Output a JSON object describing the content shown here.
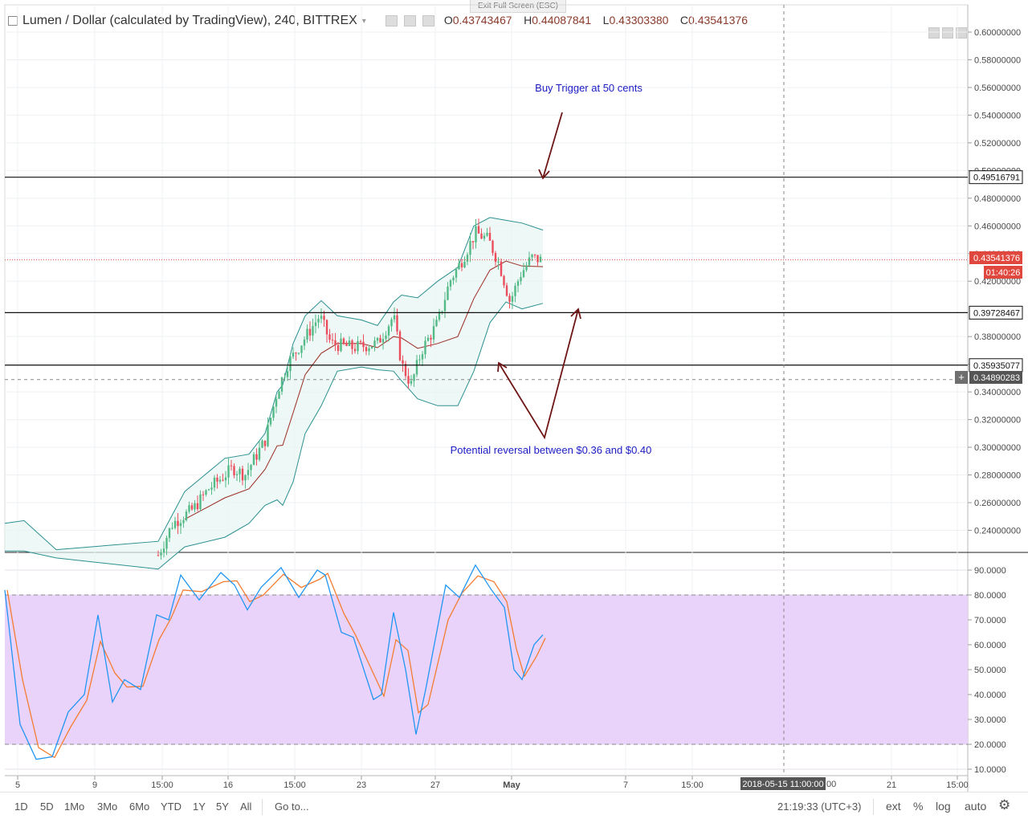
{
  "fullscreen": {
    "exit_label": "Exit Full Screen (ESC)"
  },
  "header": {
    "symbol": "Lumen / Dollar (calculated by TradingView), 240, BITTREX",
    "open_label": "O",
    "open": "0.43743467",
    "high_label": "H",
    "high": "0.44087841",
    "low_label": "L",
    "low": "0.43303380",
    "close_label": "C",
    "close": "0.43541376"
  },
  "price_axis": {
    "ticks": [
      "0.60000000",
      "0.58000000",
      "0.56000000",
      "0.54000000",
      "0.52000000",
      "0.50000000",
      "0.48000000",
      "0.46000000",
      "0.44000000",
      "0.42000000",
      "0.38000000",
      "0.36000000",
      "0.34000000",
      "0.32000000",
      "0.30000000",
      "0.28000000",
      "0.26000000",
      "0.24000000"
    ],
    "last_price": "0.43541376",
    "countdown": "01:40:26",
    "crosshair_price": "0.34890283",
    "hline_labels": [
      "0.49516791",
      "0.39728467",
      "0.35935077"
    ]
  },
  "indicator_axis": {
    "ticks": [
      "90.0000",
      "80.0000",
      "70.0000",
      "60.0000",
      "50.0000",
      "40.0000",
      "30.0000",
      "20.0000",
      "10.0000"
    ]
  },
  "time_axis": {
    "ticks": [
      "5",
      "9",
      "15:00",
      "16",
      "15:00",
      "23",
      "27",
      "May",
      "7",
      "15:00",
      "21",
      "15:00"
    ],
    "crosshair_time": "2018-05-15 11:00:00",
    "partial_tick": "00"
  },
  "annotations": {
    "buy_trigger": "Buy Trigger at 50 cents",
    "reversal": "Potential reversal between $0.36 and $0.40"
  },
  "bottom_bar": {
    "ranges": [
      "1D",
      "5D",
      "1Mo",
      "3Mo",
      "6Mo",
      "YTD",
      "1Y",
      "5Y",
      "All"
    ],
    "goto": "Go to...",
    "clock": "21:19:33 (UTC+3)",
    "ext": "ext",
    "percent": "%",
    "log": "log",
    "auto": "auto"
  },
  "colors": {
    "accent_price": "#e0483f",
    "up_candle": "#53b987",
    "down_candle": "#eb4d5c",
    "band": "#26a69a",
    "stoch_fill": "#e9d3fb",
    "stoch_k": "#2196f3",
    "stoch_d": "#f57c30",
    "annotation": "#1b1bc4",
    "arrow": "#6e1616"
  }
}
